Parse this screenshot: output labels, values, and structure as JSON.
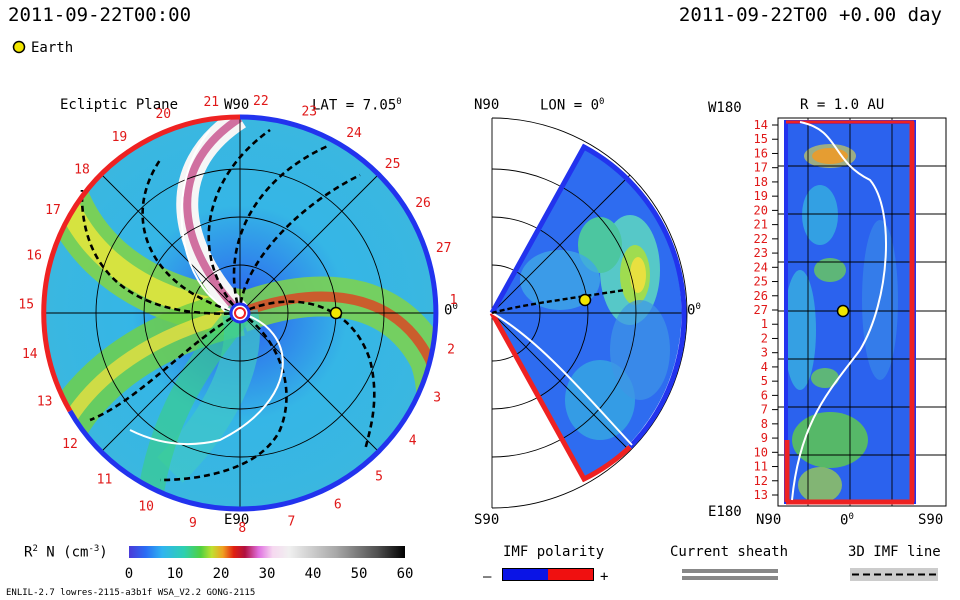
{
  "header": {
    "date": "2011-09-22T00:00",
    "right": "2011-09-22T00 +0.00 day"
  },
  "legend": {
    "earth_label": "Earth"
  },
  "ecliptic": {
    "title": "Ecliptic Plane",
    "lat_label": "LAT = 7.05",
    "lat_sup": "0",
    "top_label": "W90",
    "bottom_label": "E90",
    "right_label": "0",
    "right_sup": "0",
    "rotation_numbers": [
      "1",
      "2",
      "3",
      "4",
      "5",
      "6",
      "7",
      "8",
      "9",
      "10",
      "11",
      "12",
      "13",
      "14",
      "15",
      "16",
      "17",
      "18",
      "19",
      "20",
      "21",
      "22",
      "23",
      "24",
      "25",
      "26",
      "27"
    ]
  },
  "meridional": {
    "n_label": "N90",
    "lon_label": "LON = 0",
    "lon_sup": "0",
    "s_label": "S90",
    "right_label": "0",
    "right_sup": "0"
  },
  "sphere": {
    "title": "R = 1.0 AU",
    "top_left": "W180",
    "bottom_left": "E180",
    "n_label": "N90",
    "center_label": "0",
    "center_sup": "0",
    "s_label": "S90",
    "y_ticks": [
      "14",
      "15",
      "16",
      "17",
      "18",
      "19",
      "20",
      "21",
      "22",
      "23",
      "24",
      "25",
      "26",
      "27",
      "1",
      "2",
      "3",
      "4",
      "5",
      "6",
      "7",
      "8",
      "9",
      "10",
      "11",
      "12",
      "13"
    ]
  },
  "colorbar": {
    "label": "R",
    "label_sup": "2",
    "label_rest": " N (cm",
    "label_sup2": "-3",
    "label_end": ")",
    "ticks": [
      "0",
      "10",
      "20",
      "30",
      "40",
      "50",
      "60"
    ]
  },
  "imf": {
    "title": "IMF polarity",
    "minus": "–",
    "plus": "+",
    "negative_color": "#0a14e6",
    "positive_color": "#f01010"
  },
  "sheath": {
    "title": "Current sheath"
  },
  "imf3d": {
    "title": "3D IMF line"
  },
  "footer": {
    "left": "ENLIL-2.7 lowres-2115-a3b1f WSA_V2.2 GONG-2115"
  },
  "colors": {
    "earth": "#f2e600",
    "neg": "#2233ee",
    "pos": "#ee2222"
  }
}
